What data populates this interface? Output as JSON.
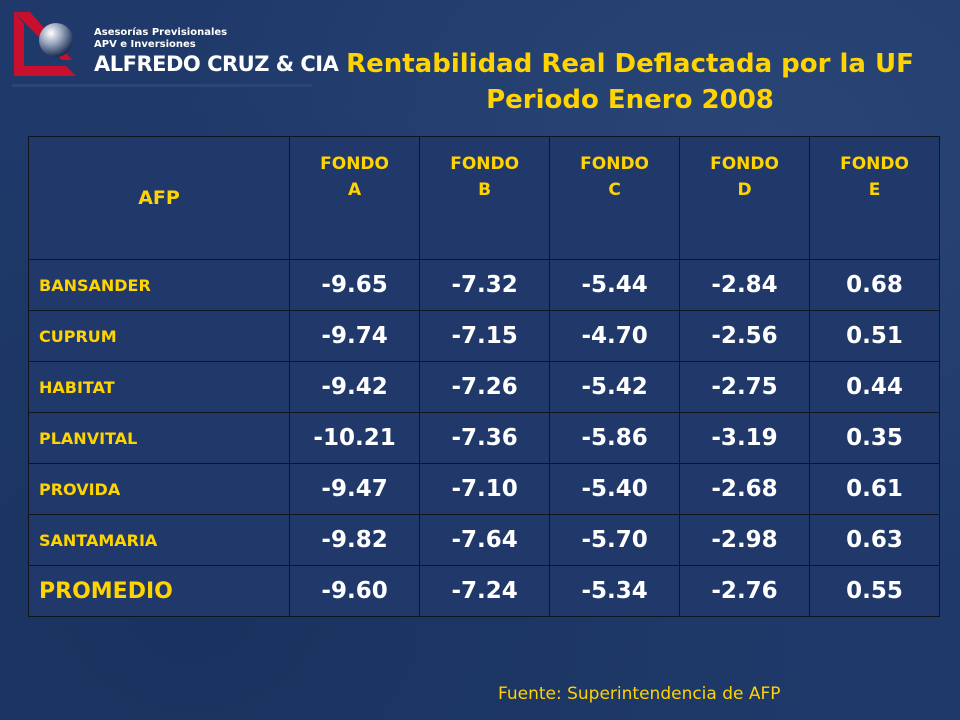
{
  "logo": {
    "line1": "Asesorías Previsionales",
    "line2": "APV e Inversiones",
    "line3": "ALFREDO CRUZ & CIA"
  },
  "title": {
    "line1": "Rentabilidad Real Deflactada por la UF",
    "line2": "Periodo Enero 2008"
  },
  "table": {
    "afp_header": "AFP",
    "fondos": [
      {
        "line1": "FONDO",
        "line2": "A"
      },
      {
        "line1": "FONDO",
        "line2": "B"
      },
      {
        "line1": "FONDO",
        "line2": "C"
      },
      {
        "line1": "FONDO",
        "line2": "D"
      },
      {
        "line1": "FONDO",
        "line2": "E"
      }
    ],
    "rows": [
      {
        "name": "BANSANDER",
        "values": [
          "-9.65",
          "-7.32",
          "-5.44",
          "-2.84",
          "0.68"
        ]
      },
      {
        "name": "CUPRUM",
        "values": [
          "-9.74",
          "-7.15",
          "-4.70",
          "-2.56",
          "0.51"
        ]
      },
      {
        "name": "HABITAT",
        "values": [
          "-9.42",
          "-7.26",
          "-5.42",
          "-2.75",
          "0.44"
        ]
      },
      {
        "name": "PLANVITAL",
        "values": [
          "-10.21",
          "-7.36",
          "-5.86",
          "-3.19",
          "0.35"
        ]
      },
      {
        "name": "PROVIDA",
        "values": [
          "-9.47",
          "-7.10",
          "-5.40",
          "-2.68",
          "0.61"
        ]
      },
      {
        "name": "SANTAMARIA",
        "values": [
          "-9.82",
          "-7.64",
          "-5.70",
          "-2.98",
          "0.63"
        ]
      },
      {
        "name": "PROMEDIO",
        "values": [
          "-9.60",
          "-7.24",
          "-5.34",
          "-2.76",
          "0.55"
        ]
      }
    ]
  },
  "source": "Fuente: Superintendencia de AFP",
  "colors": {
    "background": "#1f3a6a",
    "accent_yellow": "#ffd400",
    "value_white": "#ffffff",
    "logo_red": "#c8102e"
  }
}
